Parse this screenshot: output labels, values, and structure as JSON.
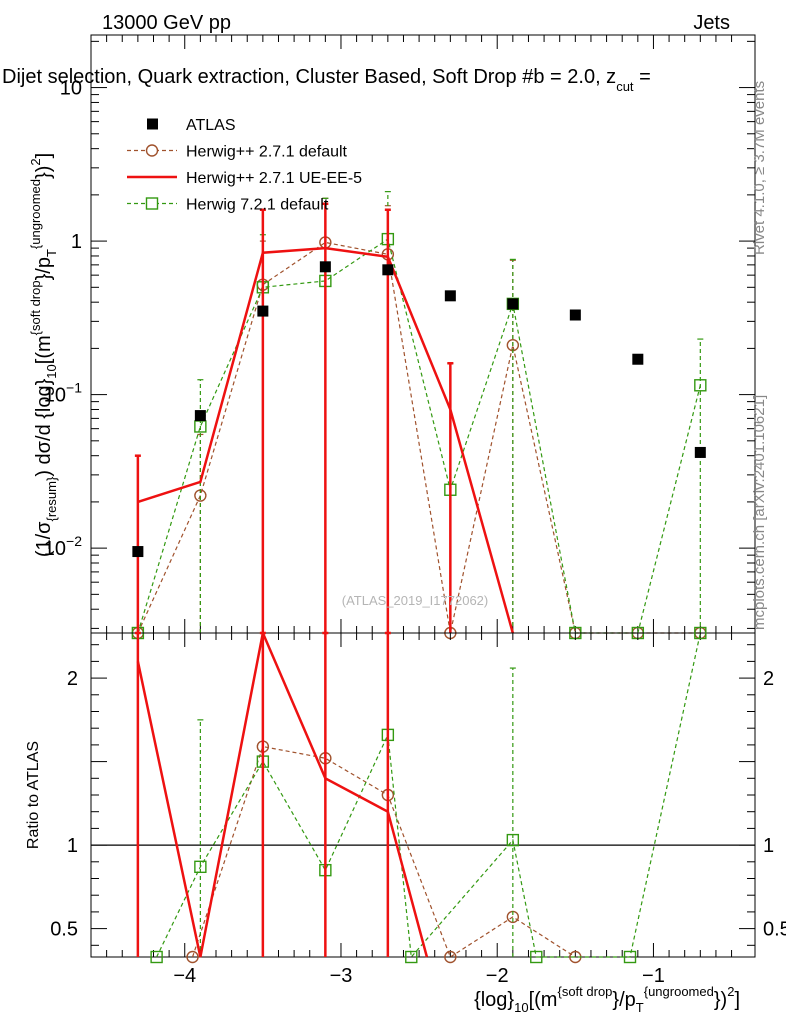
{
  "header": {
    "energy_label": "13000 GeV pp",
    "category_label": "Jets",
    "selection_title": "Dijet selection, Quark extraction, Cluster Based, Soft Drop #b = 2.0, z",
    "title_sub": "cut",
    "title_tail": " ="
  },
  "side_labels": {
    "rivet": "Rivet 4.1.0, ≥ 3.7M events",
    "mcplots": "mcplots.cern.ch [arXiv:2401.10621]"
  },
  "watermark": "(ATLAS_2019_I1772062)",
  "colors": {
    "atlas": "#000000",
    "herwig_pp_default": "#a0522d",
    "herwig_pp_ueee5": "#ee1111",
    "herwig7_default": "#339911"
  },
  "chart_data": [
    {
      "type": "scatter",
      "panel": "main",
      "y_scale": "log",
      "ylim": [
        0.0028,
        22
      ],
      "xlim": [
        -4.6,
        -0.35
      ],
      "ylabel": "(1/σ{resum}) dσ/d {log}10[(m{soft drop}/pT{ungroomed})2]",
      "y_ticks": [
        {
          "value": 0.01,
          "label": "10",
          "sup": "−2"
        },
        {
          "value": 0.1,
          "label": "10",
          "sup": "−1"
        },
        {
          "value": 1,
          "label": "1",
          "sup": ""
        },
        {
          "value": 10,
          "label": "10",
          "sup": ""
        }
      ],
      "legend_position": "top-left",
      "series": [
        {
          "name": "ATLAS",
          "style": "marker-square",
          "x": [
            -4.3,
            -3.9,
            -3.5,
            -3.1,
            -2.7,
            -2.3,
            -1.9,
            -1.5,
            -1.1,
            -0.7
          ],
          "y": [
            0.0095,
            0.073,
            0.35,
            0.68,
            0.65,
            0.44,
            0.39,
            0.33,
            0.17,
            0.042
          ]
        },
        {
          "name": "Herwig++ 2.7.1 default",
          "style": "dashed-circle",
          "x": [
            -4.3,
            -3.9,
            -3.5,
            -3.1,
            -2.7,
            -2.3,
            -1.9,
            -1.5,
            -1.1,
            -0.7
          ],
          "y": [
            0.0028,
            0.022,
            0.52,
            0.98,
            0.82,
            0.0028,
            0.21,
            0.0028,
            0.0028,
            0.0028
          ],
          "err_x": [
            -3.9,
            -3.5,
            -3.1,
            -2.7,
            -1.9
          ],
          "err_lo": [
            0.0028,
            0.0028,
            0.0028,
            0.0028,
            0.0028
          ],
          "err_hi": [
            0.055,
            1.0,
            1.9,
            1.7,
            0.75
          ]
        },
        {
          "name": "Herwig++ 2.7.1 UE-EE-5",
          "style": "solid-line",
          "x": [
            -4.3,
            -3.9,
            -3.5,
            -3.1,
            -2.7,
            -2.3,
            -1.9
          ],
          "y": [
            0.02,
            0.027,
            0.84,
            0.9,
            0.79,
            0.08,
            0.0028
          ],
          "err_x": [
            -4.3,
            -3.5,
            -3.1,
            -2.7,
            -2.3
          ],
          "err_lo": [
            0.0028,
            0.0028,
            0.0028,
            0.0028,
            0.0028
          ],
          "err_hi": [
            0.04,
            1.6,
            1.75,
            1.6,
            0.16
          ]
        },
        {
          "name": "Herwig 7.2.1 default",
          "style": "dashed-open-square",
          "x": [
            -4.3,
            -3.9,
            -3.5,
            -3.1,
            -2.7,
            -2.3,
            -1.9,
            -1.5,
            -1.1,
            -0.7
          ],
          "y": [
            0.0028,
            0.062,
            0.5,
            0.55,
            1.03,
            0.024,
            0.39,
            0.0028,
            0.0028,
            0.115
          ],
          "err_x": [
            -3.9,
            -3.5,
            -3.1,
            -2.7,
            -2.3,
            -1.9,
            -0.7
          ],
          "err_lo": [
            0.0028,
            0.0028,
            0.0028,
            0.0028,
            0.0028,
            0.0028,
            0.0028
          ],
          "err_hi": [
            0.125,
            1.1,
            1.9,
            2.1,
            0.16,
            0.76,
            0.23
          ]
        }
      ]
    },
    {
      "type": "line",
      "panel": "ratio",
      "y_scale": "linear",
      "ylim": [
        0.33,
        2.27
      ],
      "xlim": [
        -4.6,
        -0.35
      ],
      "ylabel": "Ratio to ATLAS",
      "xlabel": "{log}10[(m{soft drop}/pT{ungroomed})2]",
      "x_ticks": [
        -4,
        -3,
        -2,
        -1
      ],
      "x_tick_labels": [
        "−4",
        "−3",
        "−2",
        "−1"
      ],
      "y_ticks": [
        0.5,
        1,
        2
      ],
      "y_tick_labels": [
        "0.5",
        "1",
        "2"
      ],
      "reference_line": 1,
      "series": [
        {
          "name": "Herwig++ 2.7.1 default",
          "style": "dashed-circle",
          "x": [
            -3.95,
            -3.5,
            -3.1,
            -2.7,
            -2.3,
            -1.9,
            -1.5
          ],
          "y": [
            0.33,
            1.59,
            1.52,
            1.3,
            0.33,
            0.57,
            0.33
          ]
        },
        {
          "name": "Herwig++ 2.7.1 UE-EE-5",
          "style": "solid-line",
          "x": [
            -4.3,
            -3.9,
            -3.5,
            -3.1,
            -2.7,
            -2.45
          ],
          "y": [
            2.1,
            0.33,
            2.3,
            1.4,
            1.2,
            0.33
          ],
          "err_x": [
            -4.3,
            -3.5,
            -3.1,
            -2.7
          ],
          "err_lo": [
            0.33,
            0.33,
            0.33,
            0.33
          ],
          "err_hi": [
            2.27,
            2.27,
            2.27,
            2.27
          ]
        },
        {
          "name": "Herwig 7.2.1 default",
          "style": "dashed-open-square",
          "x": [
            -4.18,
            -3.9,
            -3.5,
            -3.1,
            -2.7,
            -2.55,
            -1.9,
            -1.75,
            -1.15,
            -0.7
          ],
          "y": [
            0.33,
            0.87,
            1.5,
            0.85,
            1.66,
            0.33,
            1.03,
            0.33,
            0.33,
            2.27
          ],
          "err_x": [
            -3.9,
            -3.5,
            -3.1,
            -2.7,
            -1.9
          ],
          "err_lo": [
            0.33,
            0.33,
            0.33,
            0.33,
            0.33
          ],
          "err_hi": [
            1.75,
            2.27,
            2.27,
            2.27,
            2.06
          ]
        }
      ]
    }
  ]
}
